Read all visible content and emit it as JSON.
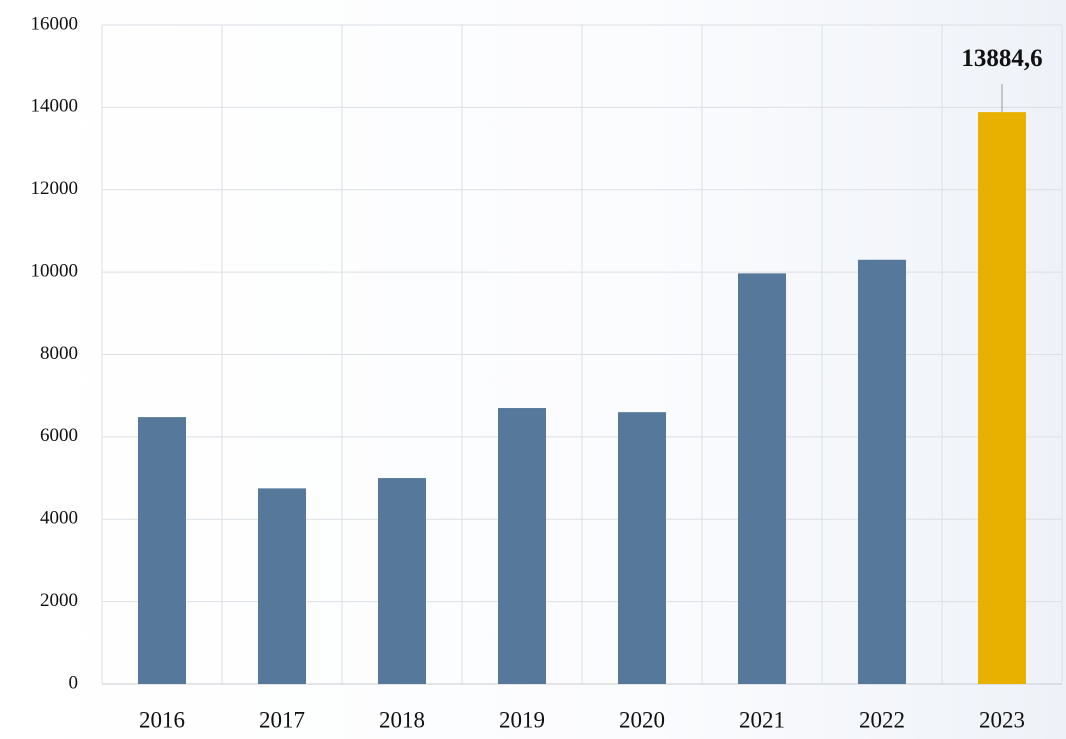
{
  "chart_data": {
    "type": "bar",
    "categories": [
      "2016",
      "2017",
      "2018",
      "2019",
      "2020",
      "2021",
      "2022",
      "2023"
    ],
    "values": [
      6480,
      4750,
      5000,
      6700,
      6600,
      9970,
      10300,
      13884.6
    ],
    "value_labels": [
      null,
      null,
      null,
      null,
      null,
      null,
      null,
      "13884,6"
    ],
    "colors": [
      "#56799b",
      "#56799b",
      "#56799b",
      "#56799b",
      "#56799b",
      "#56799b",
      "#56799b",
      "#e8b100"
    ],
    "ylim": [
      0,
      16000
    ],
    "yticks": [
      0,
      2000,
      4000,
      6000,
      8000,
      10000,
      12000,
      14000,
      16000
    ],
    "grid": true
  }
}
